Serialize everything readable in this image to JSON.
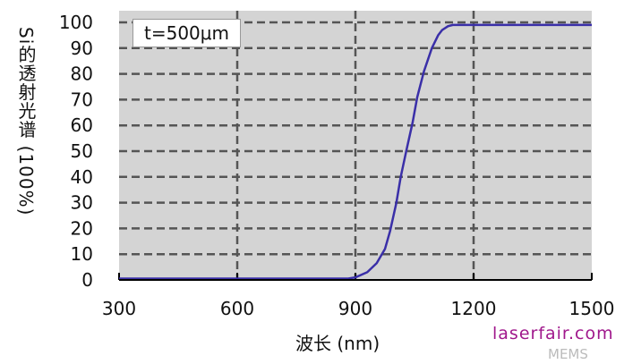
{
  "chart_data": {
    "type": "line",
    "title": "",
    "xlabel": "波长 (nm)",
    "ylabel": "Si的透射光谱 (100%)",
    "xlim": [
      300,
      1500
    ],
    "ylim": [
      0,
      100
    ],
    "xticks": [
      300,
      600,
      900,
      1200,
      1500
    ],
    "yticks": [
      0,
      10,
      20,
      30,
      40,
      50,
      60,
      70,
      80,
      90,
      100
    ],
    "grid": true,
    "legend": {
      "text": "t=500μm",
      "placement": "top-left"
    },
    "series": [
      {
        "color": "#3a2fa8",
        "x": [
          300,
          600,
          880,
          900,
          930,
          954,
          975,
          988,
          1004,
          1015,
          1029,
          1045,
          1057,
          1074,
          1094,
          1110,
          1120,
          1135,
          1147,
          1200,
          1300,
          1400,
          1500
        ],
        "y": [
          0.5,
          0.5,
          0.5,
          1,
          3,
          6.5,
          12,
          19,
          30,
          40,
          50,
          61,
          71,
          81,
          90,
          95,
          97,
          98.5,
          99,
          99,
          99,
          99,
          99
        ]
      }
    ]
  },
  "watermark": {
    "text": "laserfair.com",
    "overlay": "MEMS"
  }
}
